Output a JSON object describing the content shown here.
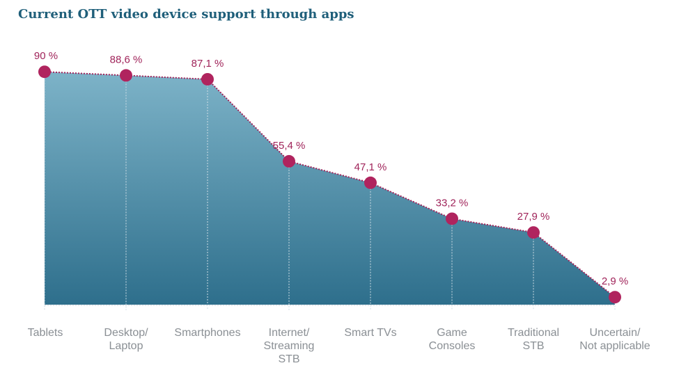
{
  "chart_data": {
    "type": "area",
    "title": "Current OTT video device support through apps",
    "categories": [
      [
        "Tablets"
      ],
      [
        "Desktop/",
        "Laptop"
      ],
      [
        "Smartphones"
      ],
      [
        "Internet/",
        "Streaming",
        "STB"
      ],
      [
        "Smart TVs"
      ],
      [
        "Game",
        "Consoles"
      ],
      [
        "Traditional",
        "STB"
      ],
      [
        "Uncertain/",
        "Not applicable"
      ]
    ],
    "values": [
      90,
      88.6,
      87.1,
      55.4,
      47.1,
      33.2,
      27.9,
      2.9
    ],
    "value_labels": [
      "90 %",
      "88,6 %",
      "87,1 %",
      "55,4 %",
      "47,1 %",
      "33,2 %",
      "27,9 %",
      "2,9 %"
    ],
    "ylim": [
      0,
      100
    ],
    "grid": false,
    "colors": {
      "area_top": "#7db3c8",
      "area_bottom": "#2e6f8c",
      "line": "#a0245a",
      "marker": "#b0245e",
      "value_label": "#a0245a",
      "category_label": "#8a8f94",
      "title": "#1f5f7a"
    }
  }
}
